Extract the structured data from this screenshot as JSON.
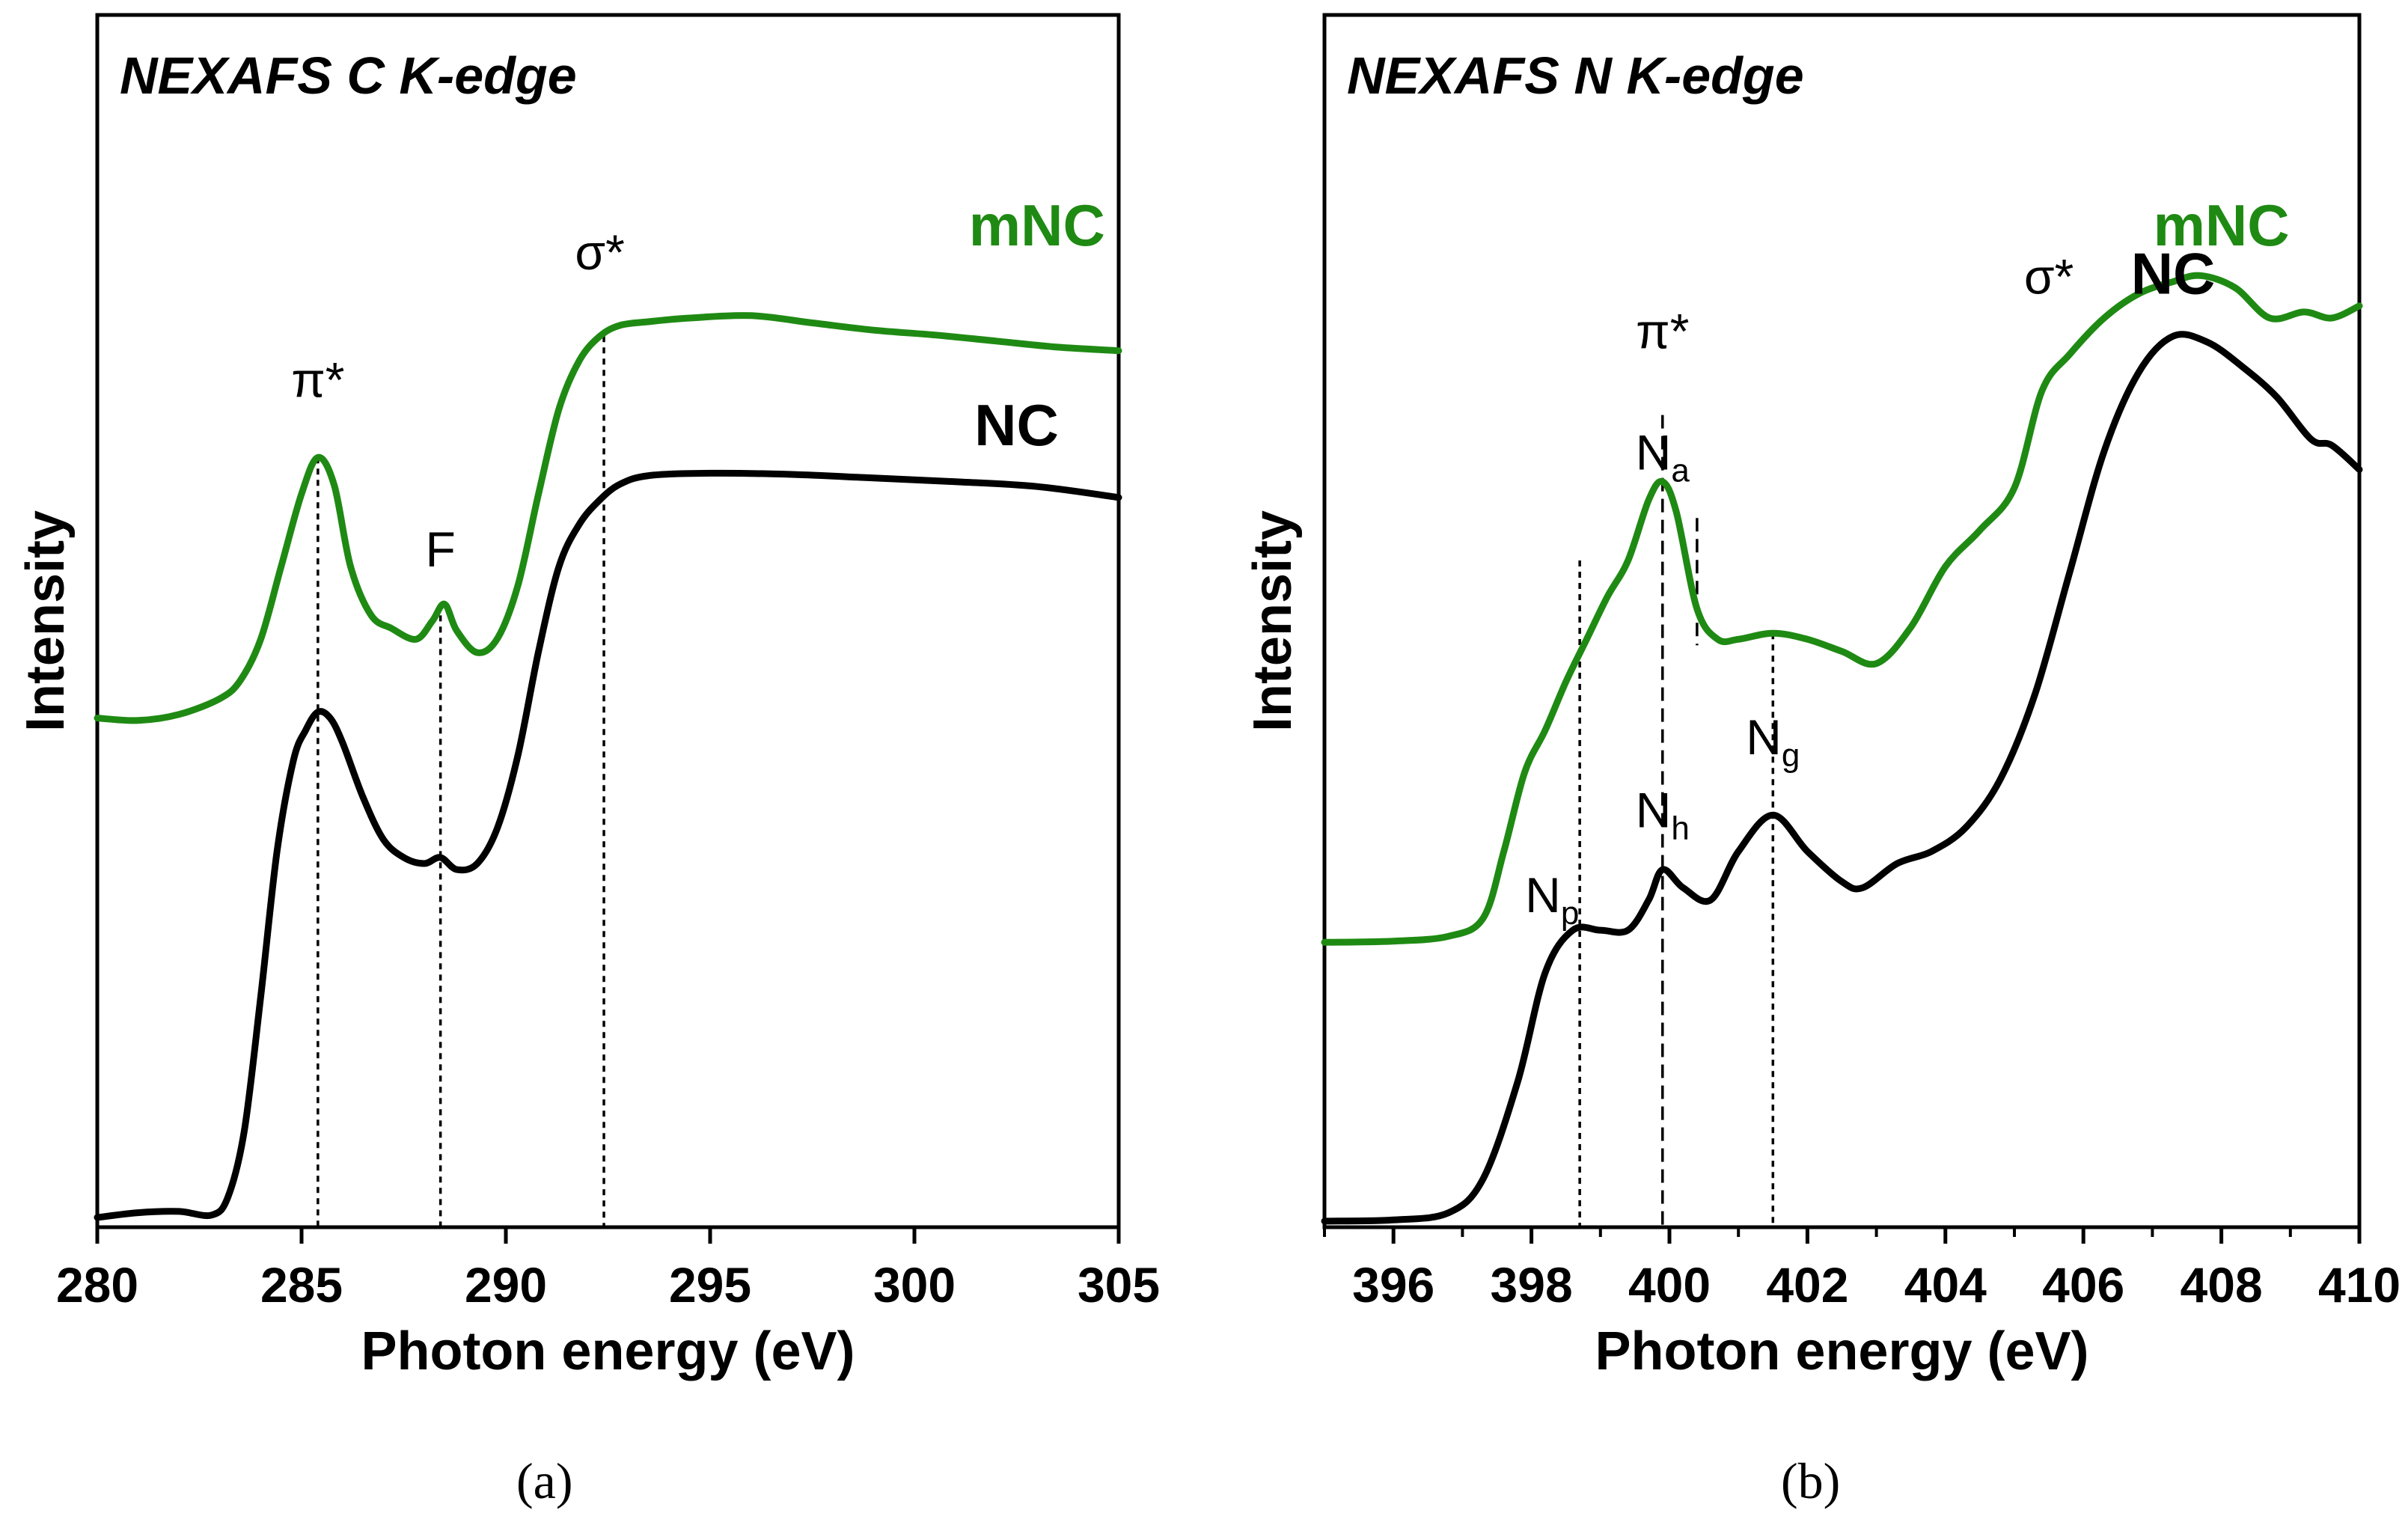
{
  "colors": {
    "mNC": "#1f8a13",
    "NC": "#000000",
    "axis": "#000000"
  },
  "chart_data": [
    {
      "type": "line",
      "panel": "(a)",
      "title": "NEXAFS C K-edge",
      "xlabel": "Photon energy (eV)",
      "ylabel": "Intensity",
      "xlim": [
        280,
        305
      ],
      "ylim": [
        0,
        100
      ],
      "x_ticks": [
        280,
        285,
        290,
        295,
        300,
        305
      ],
      "x_tick_labels": [
        "280",
        "285",
        "290",
        "295",
        "300",
        "305"
      ],
      "y_ticks": "none",
      "series": [
        {
          "name": "mNC",
          "color": "#1f8a13",
          "x": [
            280,
            281,
            282,
            283,
            283.5,
            284,
            284.5,
            285,
            285.4,
            285.8,
            286.2,
            286.7,
            287.2,
            287.8,
            288.2,
            288.5,
            288.8,
            289.3,
            289.8,
            290.3,
            290.8,
            291.3,
            291.8,
            292.3,
            292.8,
            293.5,
            294.5,
            296,
            297.5,
            299,
            300.5,
            302,
            303.5,
            305
          ],
          "values": [
            42.0,
            41.8,
            42.3,
            43.6,
            45.1,
            48.5,
            54.5,
            60.5,
            63.5,
            61.2,
            54.5,
            50.5,
            49.4,
            48.5,
            50.0,
            51.4,
            49.2,
            47.4,
            48.6,
            53.0,
            60.5,
            67.5,
            71.5,
            73.5,
            74.4,
            74.7,
            75.0,
            75.2,
            74.6,
            74.0,
            73.6,
            73.1,
            72.6,
            72.3
          ]
        },
        {
          "name": "NC",
          "color": "#000000",
          "x": [
            280,
            281,
            282,
            282.8,
            283.2,
            283.6,
            284,
            284.4,
            284.8,
            285.1,
            285.4,
            285.7,
            286,
            286.5,
            287,
            287.5,
            288,
            288.4,
            288.8,
            289.3,
            289.8,
            290.3,
            290.8,
            291.3,
            291.8,
            292.3,
            292.8,
            293.5,
            295,
            297,
            299,
            301,
            303,
            305
          ],
          "values": [
            0.8,
            1.2,
            1.3,
            1.0,
            2.5,
            8.0,
            19.0,
            31.0,
            38.5,
            41.0,
            42.5,
            42.0,
            40.0,
            35.5,
            32.0,
            30.5,
            30.0,
            30.5,
            29.5,
            30.0,
            33.0,
            39.0,
            47.5,
            54.5,
            58.0,
            60.0,
            61.3,
            62.0,
            62.2,
            62.1,
            61.8,
            61.5,
            61.1,
            60.2
          ]
        }
      ],
      "vlines": [
        285.4,
        288.4,
        292.4
      ],
      "annotations": [
        {
          "text": "π*",
          "x": 285.4,
          "y": 68.5
        },
        {
          "text": "F",
          "x": 288.4,
          "y": 54.5
        },
        {
          "text": "σ*",
          "x": 292.3,
          "y": 79.0
        },
        {
          "text": "mNC",
          "x": 303.0,
          "y": 81.0,
          "color": "#1f8a13",
          "bold": true
        },
        {
          "text": "NC",
          "x": 302.5,
          "y": 64.5,
          "bold": true
        }
      ]
    },
    {
      "type": "line",
      "panel": "(b)",
      "title": "NEXAFS N K-edge",
      "xlabel": "Photon energy (eV)",
      "ylabel": "Intensity",
      "xlim": [
        395,
        410
      ],
      "ylim": [
        0,
        100
      ],
      "x_ticks": [
        396,
        398,
        400,
        402,
        404,
        406,
        408,
        410
      ],
      "x_tick_labels": [
        "396",
        "398",
        "400",
        "402",
        "404",
        "406",
        "408",
        "410"
      ],
      "y_ticks": "none",
      "series": [
        {
          "name": "mNC",
          "color": "#1f8a13",
          "x": [
            395,
            396,
            396.8,
            397.3,
            397.6,
            397.9,
            398.2,
            398.5,
            398.8,
            399.1,
            399.4,
            399.7,
            399.9,
            400.1,
            400.4,
            400.7,
            401,
            401.5,
            402,
            402.5,
            403,
            403.5,
            404,
            404.5,
            405,
            405.4,
            405.8,
            406.3,
            406.8,
            407.3,
            407.7,
            408.2,
            408.7,
            409.2,
            409.6,
            410
          ],
          "values": [
            23.5,
            23.6,
            24.0,
            25.5,
            31.0,
            37.5,
            41.0,
            45.0,
            48.5,
            52.0,
            55.0,
            60.0,
            61.5,
            59.0,
            51.0,
            48.5,
            48.5,
            49.0,
            48.5,
            47.5,
            46.5,
            49.5,
            54.5,
            57.5,
            61.0,
            69.0,
            72.0,
            75.0,
            77.0,
            78.0,
            78.5,
            77.5,
            75.0,
            75.5,
            75.0,
            76.0
          ]
        },
        {
          "name": "NC",
          "color": "#000000",
          "x": [
            395,
            396,
            396.8,
            397.3,
            397.8,
            398.2,
            398.6,
            399,
            399.4,
            399.7,
            399.9,
            400.2,
            400.6,
            401,
            401.5,
            402,
            402.5,
            402.8,
            403.3,
            403.8,
            404.3,
            404.8,
            405.3,
            405.8,
            406.3,
            406.8,
            407.3,
            407.8,
            408.3,
            408.8,
            409.3,
            409.6,
            410
          ],
          "values": [
            0.5,
            0.6,
            1.2,
            4.0,
            12.0,
            21.0,
            24.5,
            24.5,
            24.5,
            27.0,
            29.5,
            28.0,
            27.0,
            31.0,
            34.0,
            31.0,
            28.5,
            28.0,
            30.0,
            31.0,
            33.0,
            37.0,
            44.0,
            54.0,
            64.0,
            70.5,
            73.5,
            73.0,
            71.0,
            68.5,
            65.0,
            64.5,
            62.5
          ]
        }
      ],
      "vlines": [
        {
          "x": 398.7,
          "y_top": 55.0,
          "style": "dotted"
        },
        {
          "x": 399.9,
          "y_top": 67.0,
          "style": "dashed"
        },
        {
          "x": 400.4,
          "y_top": 58.5,
          "y_bottom": 48.0,
          "style": "dashed"
        },
        {
          "x": 401.5,
          "y_top": 49.0,
          "style": "dotted"
        }
      ],
      "annotations": [
        {
          "text": "π*",
          "x": 399.9,
          "y": 72.5
        },
        {
          "text": "σ*",
          "x": 405.5,
          "y": 77.0
        },
        {
          "text": "mNC",
          "x": 408.0,
          "y": 81.0,
          "color": "#1f8a13",
          "bold": true
        },
        {
          "text": "NC",
          "x": 407.3,
          "y": 77.0,
          "bold": true
        },
        {
          "text": "N",
          "sub": "a",
          "x": 399.9,
          "y": 62.5
        },
        {
          "text": "N",
          "sub": "p",
          "x": 398.3,
          "y": 26.0
        },
        {
          "text": "N",
          "sub": "h",
          "x": 399.9,
          "y": 33.0
        },
        {
          "text": "N",
          "sub": "g",
          "x": 401.5,
          "y": 39.0
        }
      ]
    }
  ],
  "captions": [
    "(a)",
    "(b)"
  ]
}
